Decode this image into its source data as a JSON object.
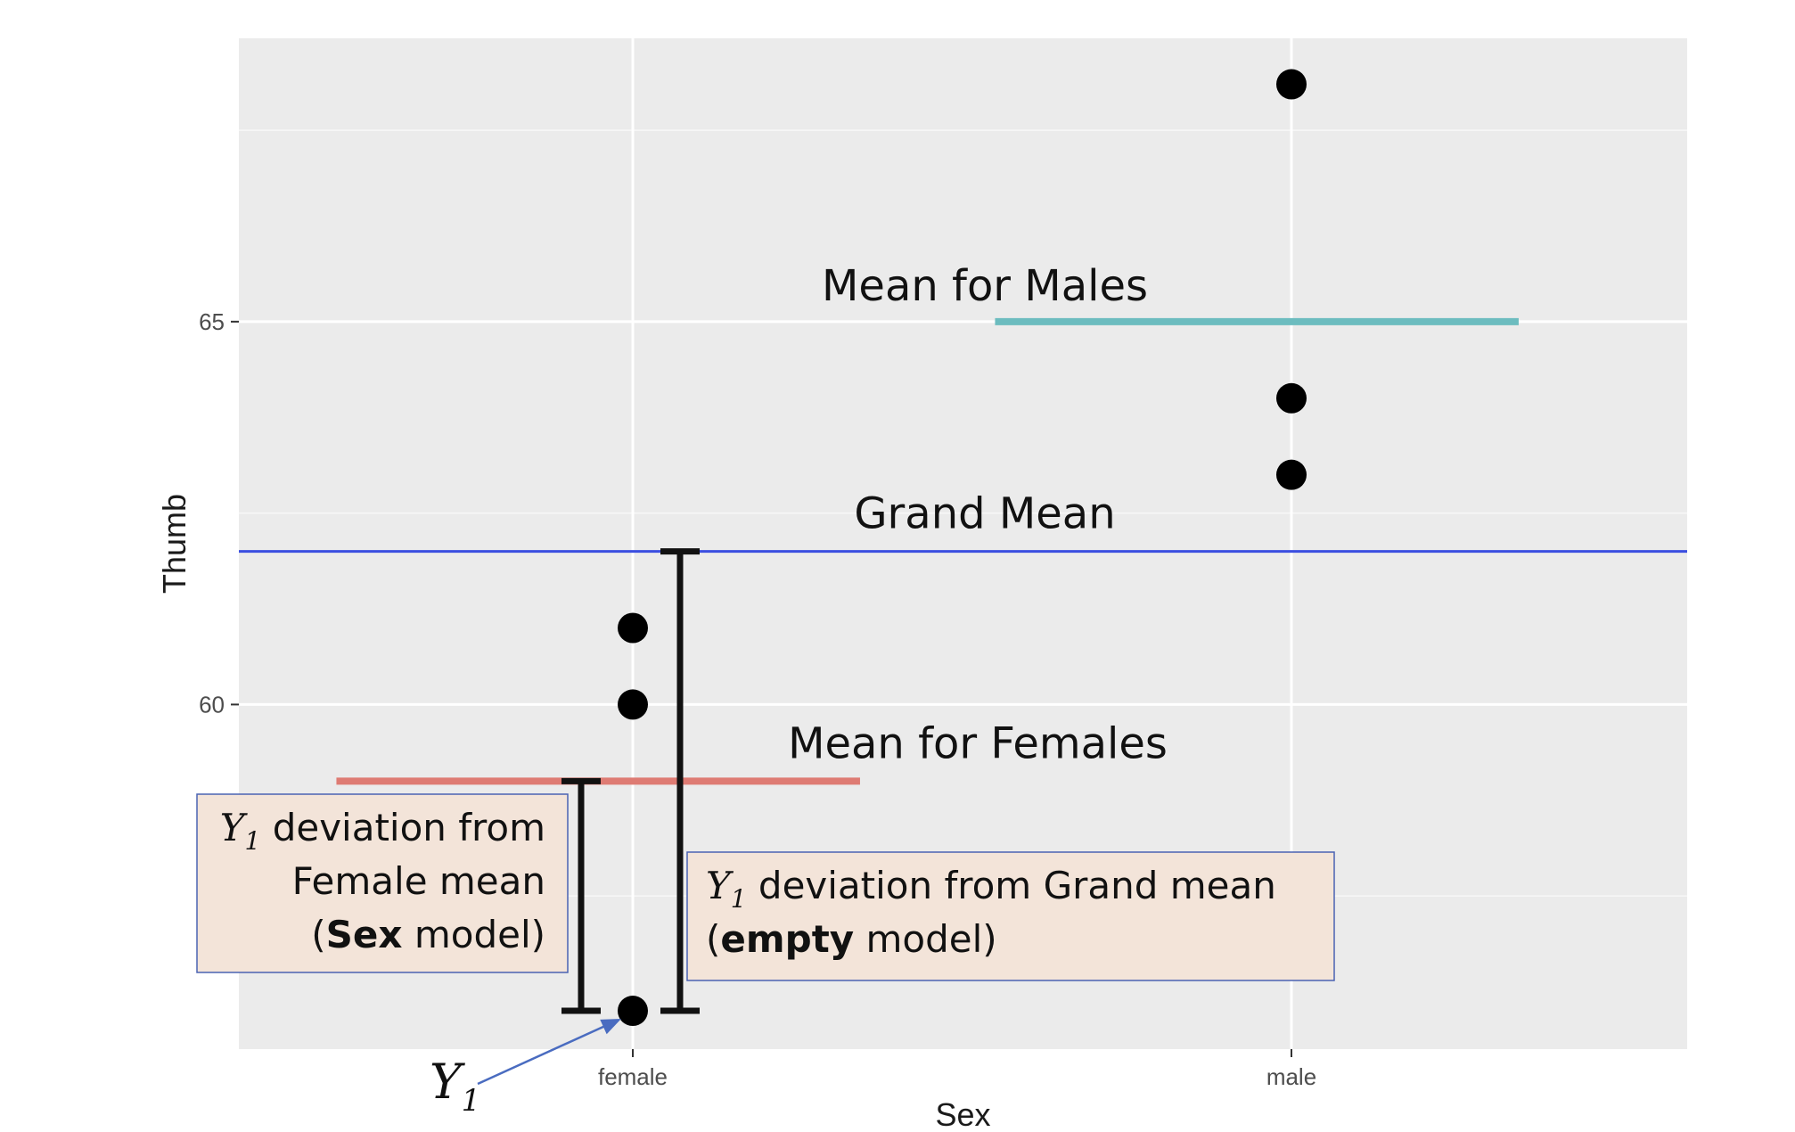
{
  "chart_data": {
    "type": "scatter",
    "title": "",
    "xlabel": "Sex",
    "ylabel": "Thumb",
    "categories": [
      "female",
      "male"
    ],
    "ylim": [
      55.5,
      68.7
    ],
    "y_ticks": [
      60,
      65
    ],
    "y_tick_labels": [
      "60",
      "65"
    ],
    "grid": true,
    "points": [
      {
        "x": "female",
        "y": 61
      },
      {
        "x": "female",
        "y": 60
      },
      {
        "x": "female",
        "y": 56
      },
      {
        "x": "male",
        "y": 68.1
      },
      {
        "x": "male",
        "y": 64
      },
      {
        "x": "male",
        "y": 63
      }
    ],
    "grand_mean": {
      "value": 62,
      "label": "Grand Mean",
      "color": "#3b4ee0"
    },
    "group_means": [
      {
        "group": "female",
        "value": 59,
        "label": "Mean for Females",
        "color": "#de7b73"
      },
      {
        "group": "male",
        "value": 65,
        "label": "Mean for Males",
        "color": "#6cbcbf"
      }
    ],
    "annotations": {
      "y1_symbol": "Y",
      "y1_subscript": "1",
      "female_box": {
        "line1_rest": " deviation from",
        "line2": "Female mean",
        "line3_open": "(",
        "line3_bold": "Sex",
        "line3_close": " model)"
      },
      "grand_box": {
        "line1_rest": " deviation from Grand mean",
        "line2_open": "(",
        "line2_bold": "empty",
        "line2_close": " model)"
      },
      "box_fill": "#f3e4d9",
      "box_stroke": "#4a63b3"
    }
  }
}
